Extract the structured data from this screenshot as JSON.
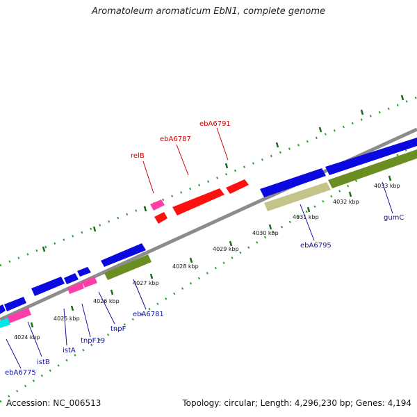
{
  "title": "Aromatoleum aromaticum EbN1, complete genome",
  "footer": {
    "accession": "Accession: NC_006513",
    "topology": "Topology: circular; Length: 4,296,230 bp; Genes: 4,194"
  },
  "colors": {
    "backbone": "#8c8c8c",
    "tick_dark": "#1a6b1a",
    "tick_light": "#2ea02e",
    "cds_forward": "#0a0ae0",
    "cds_reverse": "#ff1010",
    "track_olive": "#6b8e23",
    "track_khaki": "#c4c48a",
    "track_pink": "#ff3ea8",
    "track_cyan": "#00e8e8",
    "label_red": "#cc0000",
    "label_blue": "#1010a0"
  },
  "scale_labels": [
    "4024 kbp",
    "4025 kbp",
    "4026 kbp",
    "4027 kbp",
    "4028 kbp",
    "4029 kbp",
    "4030 kbp",
    "4031 kbp",
    "4032 kbp",
    "4033 kbp"
  ],
  "gene_labels": {
    "red": [
      "relB",
      "ebA6787",
      "ebA6791"
    ],
    "blue": [
      "ebA6775",
      "istB",
      "istA",
      "tnpF19",
      "tnpF",
      "ebA6781",
      "ebA6795",
      "gumC"
    ]
  }
}
